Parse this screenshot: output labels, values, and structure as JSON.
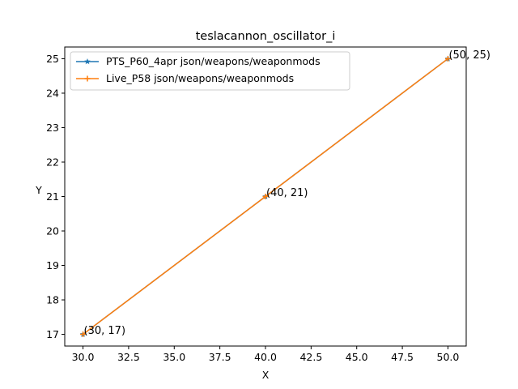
{
  "chart_data": {
    "type": "line",
    "title": "teslacannon_oscillator_i",
    "xlabel": "X",
    "ylabel": "Y",
    "xlim": [
      29,
      51
    ],
    "ylim": [
      16.66,
      25.34
    ],
    "xticks": [
      30,
      32.5,
      35,
      37.5,
      40,
      42.5,
      45,
      47.5,
      50
    ],
    "xtick_labels": [
      "30.0",
      "32.5",
      "35.0",
      "37.5",
      "40.0",
      "42.5",
      "45.0",
      "47.5",
      "50.0"
    ],
    "yticks": [
      17,
      18,
      19,
      20,
      21,
      22,
      23,
      24,
      25
    ],
    "ytick_labels": [
      "17",
      "18",
      "19",
      "20",
      "21",
      "22",
      "23",
      "24",
      "25"
    ],
    "grid": false,
    "legend_position": "upper-left",
    "series": [
      {
        "name": "PTS_P60_4apr json/weapons/weaponmods",
        "color": "#1f77b4",
        "marker": "star",
        "x": [
          30,
          40,
          50
        ],
        "y": [
          17,
          21,
          25
        ]
      },
      {
        "name": "Live_P58 json/weapons/weaponmods",
        "color": "#ff7f0e",
        "marker": "plus",
        "x": [
          30,
          40,
          50
        ],
        "y": [
          17,
          21,
          25
        ]
      }
    ],
    "annotations": [
      {
        "text": "(30, 17)",
        "x": 30,
        "y": 17
      },
      {
        "text": "(40, 21)",
        "x": 40,
        "y": 21
      },
      {
        "text": "(50, 25)",
        "x": 50,
        "y": 25
      }
    ]
  }
}
